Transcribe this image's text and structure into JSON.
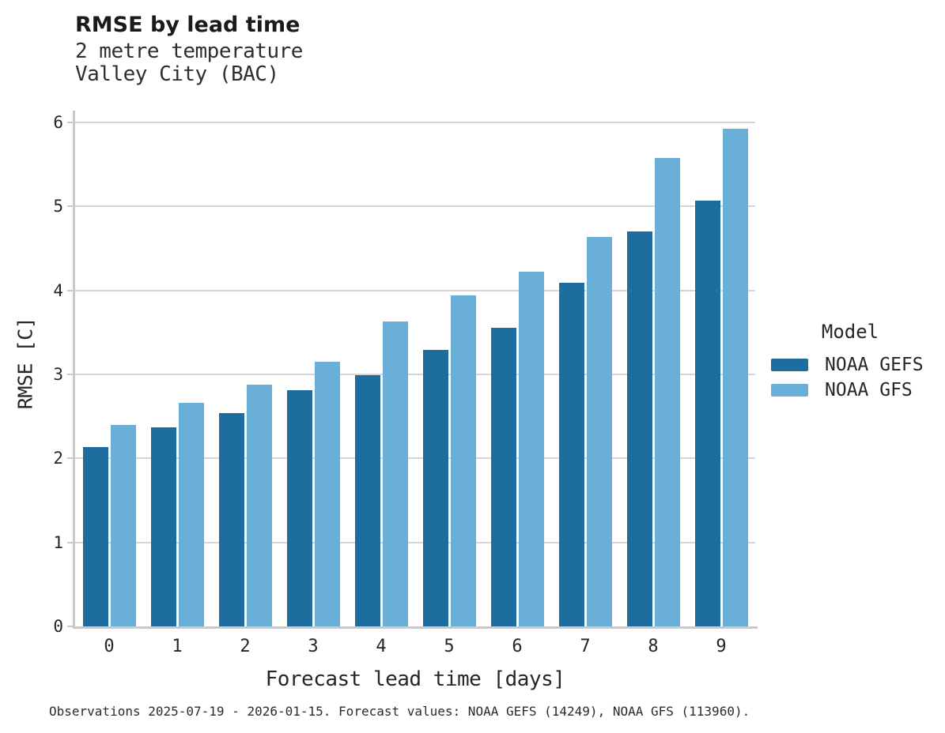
{
  "header": {
    "title": "RMSE by lead time",
    "subtitle1": "2 metre temperature",
    "subtitle2": "Valley City (BAC)"
  },
  "chart_data": {
    "type": "bar",
    "title": "RMSE by lead time",
    "subtitle": [
      "2 metre temperature",
      "Valley City (BAC)"
    ],
    "categories": [
      "0",
      "1",
      "2",
      "3",
      "4",
      "5",
      "6",
      "7",
      "8",
      "9"
    ],
    "series": [
      {
        "name": "NOAA GEFS",
        "color": "#1d6d9e",
        "values": [
          2.13,
          2.37,
          2.54,
          2.81,
          2.99,
          3.29,
          3.55,
          4.09,
          4.7,
          5.07
        ]
      },
      {
        "name": "NOAA GFS",
        "color": "#69afd7",
        "values": [
          2.4,
          2.66,
          2.88,
          3.15,
          3.63,
          3.94,
          4.22,
          4.64,
          5.58,
          5.92
        ]
      }
    ],
    "xlabel": "Forecast lead time [days]",
    "ylabel": "RMSE [C]",
    "ylim": [
      0,
      6.14
    ],
    "yticks": [
      0,
      1,
      2,
      3,
      4,
      5,
      6
    ],
    "grid": "horizontal-only",
    "legend_title": "Model",
    "legend_position": "right",
    "colors": {
      "grid": "#d5d5d5",
      "axis": "#c9c9c9",
      "text": "#262626"
    }
  },
  "caption": "Observations 2025-07-19 - 2026-01-15. Forecast values: NOAA GEFS (14249), NOAA GFS (113960)."
}
